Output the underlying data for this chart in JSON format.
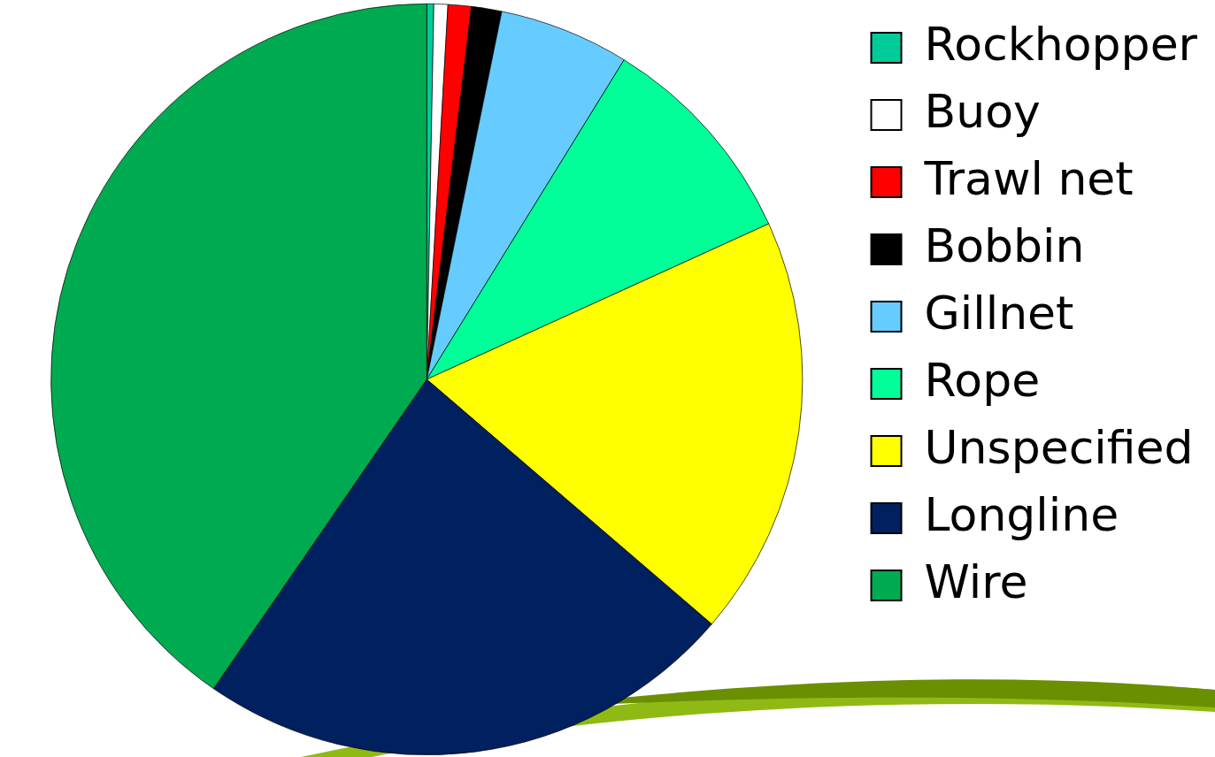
{
  "chart_data": {
    "type": "pie",
    "categories": [
      "Rockhopper",
      "Buoy",
      "Trawl net",
      "Bobbin",
      "Gillnet",
      "Rope",
      "Unspecified",
      "Longline",
      "Wire"
    ],
    "values": [
      0.3,
      0.6,
      1.0,
      1.3,
      5.6,
      9.4,
      18.1,
      23.3,
      40.4
    ],
    "colors": [
      "#00cc99",
      "#ffffff",
      "#ff0000",
      "#000000",
      "#66ccff",
      "#00ff99",
      "#ffff00",
      "#002060",
      "#00aa50"
    ],
    "legend": "right"
  }
}
